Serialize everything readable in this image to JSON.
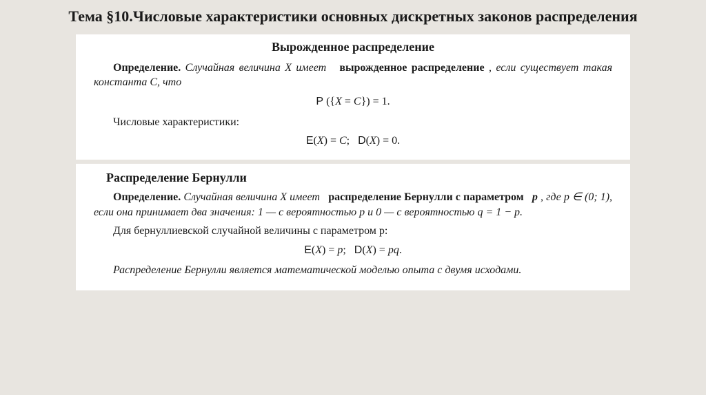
{
  "title": "Тема §10.Числовые характеристики основных дискретных законов распределения",
  "box1": {
    "heading": "Вырожденное распределение",
    "def_label": "Определение.",
    "def_text1": "Случайная величина X имеет",
    "def_bold": "вырожденное распределение",
    "def_text2": ", если существует такая константа C, что",
    "formula1": "P ({X = C}) = 1.",
    "char_label": "Числовые характеристики:",
    "formula2": "E(X) = C;   D(X) = 0."
  },
  "box2": {
    "heading": "Распределение Бернулли",
    "def_label": "Определение.",
    "def_text1": "Случайная величина X имеет",
    "def_bold": "распределение Бернулли с параметром",
    "def_param": "p",
    "def_text2": ", где p ∈ (0; 1), если она принимает два значения: 1 — с вероятностью p и 0 — с вероятностью q = 1 − p.",
    "line2": "Для бернуллиевской случайной величины с параметром p:",
    "formula1": "E(X) = p;   D(X) = pq.",
    "concl": "Распределение Бернулли является математической моделью опыта с двумя исходами."
  },
  "colors": {
    "page_bg": "#e8e5e0",
    "box_bg": "#ffffff",
    "text": "#1a1a1a"
  }
}
